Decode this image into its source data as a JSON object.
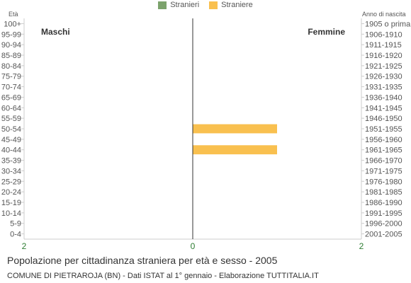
{
  "chart_data": {
    "type": "bar",
    "orientation": "horizontal",
    "subtype": "population-pyramid",
    "y_left_title": "Età",
    "y_right_title": "Anno di nascita",
    "left_side_label": "Maschi",
    "right_side_label": "Femmine",
    "categories": [
      "100+",
      "95-99",
      "90-94",
      "85-89",
      "80-84",
      "75-79",
      "70-74",
      "65-69",
      "60-64",
      "55-59",
      "50-54",
      "45-49",
      "40-44",
      "35-39",
      "30-34",
      "25-29",
      "20-24",
      "15-19",
      "10-14",
      "5-9",
      "0-4"
    ],
    "birth_years": [
      "1905 o prima",
      "1906-1910",
      "1911-1915",
      "1916-1920",
      "1921-1925",
      "1926-1930",
      "1931-1935",
      "1936-1940",
      "1941-1945",
      "1946-1950",
      "1951-1955",
      "1956-1960",
      "1961-1965",
      "1966-1970",
      "1971-1975",
      "1976-1980",
      "1981-1985",
      "1986-1990",
      "1991-1995",
      "1996-2000",
      "2001-2005"
    ],
    "series": [
      {
        "name": "Stranieri",
        "color": "#7ca36c",
        "side": "left",
        "values": [
          0,
          0,
          0,
          0,
          0,
          0,
          0,
          0,
          0,
          0,
          0,
          0,
          0,
          0,
          0,
          0,
          0,
          0,
          0,
          0,
          0
        ]
      },
      {
        "name": "Straniere",
        "color": "#f9c04f",
        "side": "right",
        "values": [
          0,
          0,
          0,
          0,
          0,
          0,
          0,
          0,
          0,
          0,
          1,
          0,
          1,
          0,
          0,
          0,
          0,
          0,
          0,
          0,
          0
        ]
      }
    ],
    "x_ticks": [
      "2",
      "0",
      "2"
    ],
    "xlim": [
      -2,
      2
    ],
    "grid": false,
    "legend_position": "top-center"
  },
  "footer": {
    "title": "Popolazione per cittadinanza straniera per età e sesso - 2005",
    "source": "COMUNE DI PIETRAROJA (BN) - Dati ISTAT al 1° gennaio - Elaborazione TUTTITALIA.IT"
  },
  "colors": {
    "axis": "#cccccc",
    "center_line": "#333333",
    "tick_text": "#555555",
    "x_tick_text": "#2e7d32"
  }
}
